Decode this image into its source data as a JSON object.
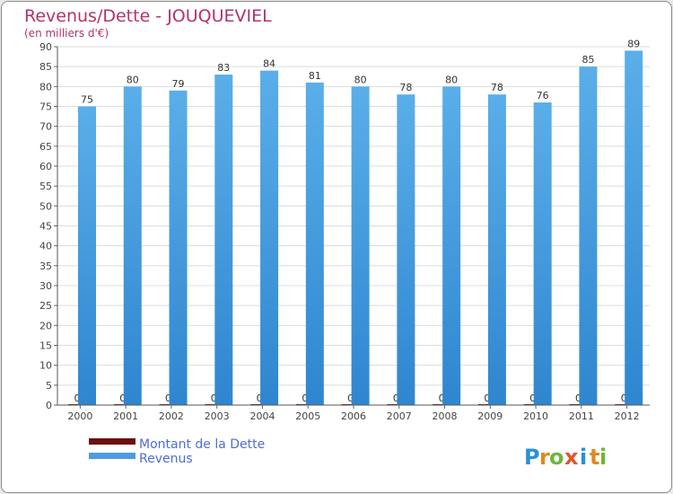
{
  "chart_data": {
    "type": "bar",
    "title": "Revenus/Dette - JOUQUEVIEL",
    "subtitle": "(en milliers d'€)",
    "categories": [
      "2000",
      "2001",
      "2002",
      "2003",
      "2004",
      "2005",
      "2006",
      "2007",
      "2008",
      "2009",
      "2010",
      "2011",
      "2012"
    ],
    "series": [
      {
        "name": "Montant de la Dette",
        "color": "#6b0f0f",
        "values": [
          0,
          0,
          0,
          0,
          0,
          0,
          0,
          0,
          0,
          0,
          0,
          0,
          0
        ]
      },
      {
        "name": "Revenus",
        "color": "#4c9be0",
        "values": [
          75,
          80,
          79,
          83,
          84,
          81,
          80,
          78,
          80,
          78,
          76,
          85,
          89
        ]
      }
    ],
    "ylim": [
      0,
      90
    ],
    "ytick_step": 5,
    "legend_position": "bottom-left"
  },
  "brand": {
    "letters": [
      "P",
      "r",
      "o",
      "x",
      "i",
      "t",
      "i"
    ],
    "colors": [
      "#2b8fd6",
      "#e08a1e",
      "#6cb83a",
      "#e2542a",
      "#2b8fd6",
      "#e08a1e",
      "#6cb83a"
    ]
  }
}
